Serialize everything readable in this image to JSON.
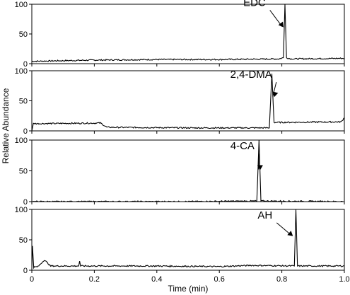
{
  "chart_data": {
    "type": "line",
    "xlabel": "Time (min)",
    "ylabel": "Relative Abundance",
    "xlim": [
      0,
      1.0
    ],
    "ylim": [
      0,
      100
    ],
    "x_ticks": [
      "0",
      "0.2",
      "0.4",
      "0.6",
      "0.8",
      "1.0"
    ],
    "y_ticks": [
      "0",
      "50",
      "100"
    ],
    "line_color": "#000000",
    "panels": [
      {
        "annotation": "EDC",
        "arrow_target": [
          0.81,
          60
        ],
        "series": [
          {
            "x": 0.0,
            "y": 4
          },
          {
            "x": 0.2,
            "y": 6
          },
          {
            "x": 0.4,
            "y": 7
          },
          {
            "x": 0.6,
            "y": 7
          },
          {
            "x": 0.79,
            "y": 8
          },
          {
            "x": 0.805,
            "y": 10
          },
          {
            "x": 0.81,
            "y": 100
          },
          {
            "x": 0.815,
            "y": 10
          },
          {
            "x": 0.83,
            "y": 8
          },
          {
            "x": 1.0,
            "y": 9
          }
        ]
      },
      {
        "annotation": "2,4-DMA",
        "arrow_target": [
          0.78,
          55
        ],
        "series": [
          {
            "x": 0.0,
            "y": 0
          },
          {
            "x": 0.005,
            "y": 12
          },
          {
            "x": 0.22,
            "y": 13
          },
          {
            "x": 0.24,
            "y": 6
          },
          {
            "x": 0.5,
            "y": 5
          },
          {
            "x": 0.76,
            "y": 5
          },
          {
            "x": 0.768,
            "y": 95
          },
          {
            "x": 0.775,
            "y": 14
          },
          {
            "x": 0.99,
            "y": 15
          },
          {
            "x": 1.0,
            "y": 22
          }
        ]
      },
      {
        "annotation": "4-CA",
        "arrow_target": [
          0.735,
          50
        ],
        "series": [
          {
            "x": 0.0,
            "y": 0
          },
          {
            "x": 0.5,
            "y": 0
          },
          {
            "x": 0.72,
            "y": 1
          },
          {
            "x": 0.727,
            "y": 100
          },
          {
            "x": 0.733,
            "y": 1
          },
          {
            "x": 1.0,
            "y": 0
          }
        ]
      },
      {
        "annotation": "AH",
        "arrow_target": [
          0.84,
          55
        ],
        "series": [
          {
            "x": 0.0,
            "y": 2
          },
          {
            "x": 0.002,
            "y": 40
          },
          {
            "x": 0.006,
            "y": 5
          },
          {
            "x": 0.02,
            "y": 6
          },
          {
            "x": 0.04,
            "y": 17
          },
          {
            "x": 0.06,
            "y": 7
          },
          {
            "x": 0.15,
            "y": 7
          },
          {
            "x": 0.153,
            "y": 15
          },
          {
            "x": 0.156,
            "y": 7
          },
          {
            "x": 0.4,
            "y": 7
          },
          {
            "x": 0.6,
            "y": 6
          },
          {
            "x": 0.7,
            "y": 8
          },
          {
            "x": 0.84,
            "y": 7
          },
          {
            "x": 0.845,
            "y": 100
          },
          {
            "x": 0.85,
            "y": 7
          },
          {
            "x": 1.0,
            "y": 7
          }
        ]
      }
    ]
  }
}
